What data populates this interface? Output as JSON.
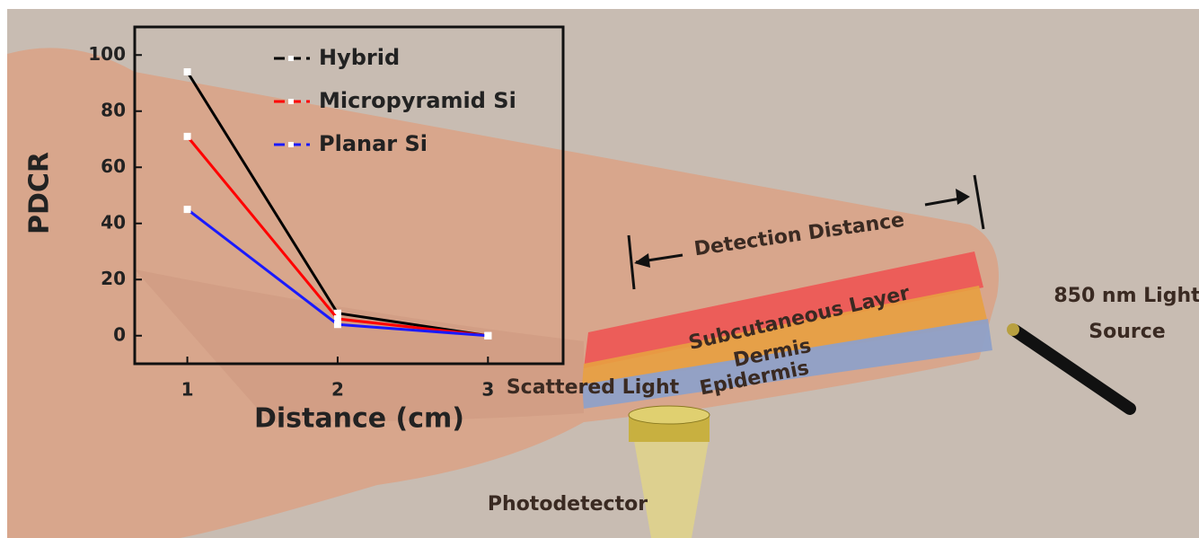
{
  "chart_data": {
    "type": "line",
    "x": [
      1,
      2,
      3
    ],
    "series": [
      {
        "name": "Hybrid",
        "color": "#000000",
        "values": [
          94,
          8,
          0
        ]
      },
      {
        "name": "Micropyramid Si",
        "color": "#ff0000",
        "values": [
          71,
          6,
          0
        ]
      },
      {
        "name": "Planar Si",
        "color": "#1a1aff",
        "values": [
          45,
          4,
          0
        ]
      }
    ],
    "xlabel": "Distance (cm)",
    "ylabel": "PDCR",
    "xlim": [
      0.65,
      3.5
    ],
    "xticks": [
      1,
      2,
      3
    ],
    "ylim": [
      -10,
      110
    ],
    "yticks": [
      0,
      20,
      40,
      60,
      80,
      100
    ],
    "legend": "upper center",
    "annotations": [
      "Detection Distance",
      "Subcutaneous Layer",
      "Dermis",
      "Epidermis",
      "Scattered Light",
      "850 nm Light",
      "Source",
      "Photodetector"
    ]
  }
}
